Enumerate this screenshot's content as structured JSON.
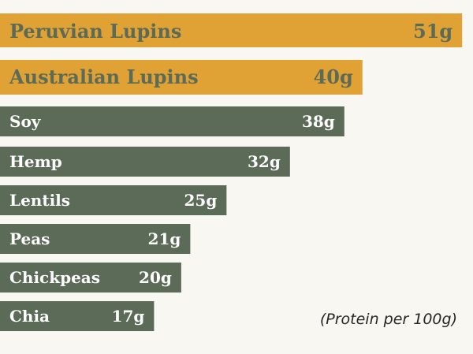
{
  "chart_data": {
    "type": "bar",
    "orientation": "horizontal",
    "categories": [
      "Peruvian Lupins",
      "Australian Lupins",
      "Soy",
      "Hemp",
      "Lentils",
      "Peas",
      "Chickpeas",
      "Chia"
    ],
    "values": [
      51,
      40,
      38,
      32,
      25,
      21,
      20,
      17
    ],
    "value_labels": [
      "51g",
      "40g",
      "38g",
      "32g",
      "25g",
      "21g",
      "20g",
      "17g"
    ],
    "highlighted": [
      true,
      true,
      false,
      false,
      false,
      false,
      false,
      false
    ],
    "xlim": [
      0,
      52.2
    ],
    "grid": false,
    "colors": {
      "highlight": "#e0a234",
      "default": "#5c6b58",
      "highlight_text": "#5c6b58",
      "default_text": "#ffffff",
      "background": "#f8f7f2"
    }
  },
  "note": "(Protein per 100g)"
}
